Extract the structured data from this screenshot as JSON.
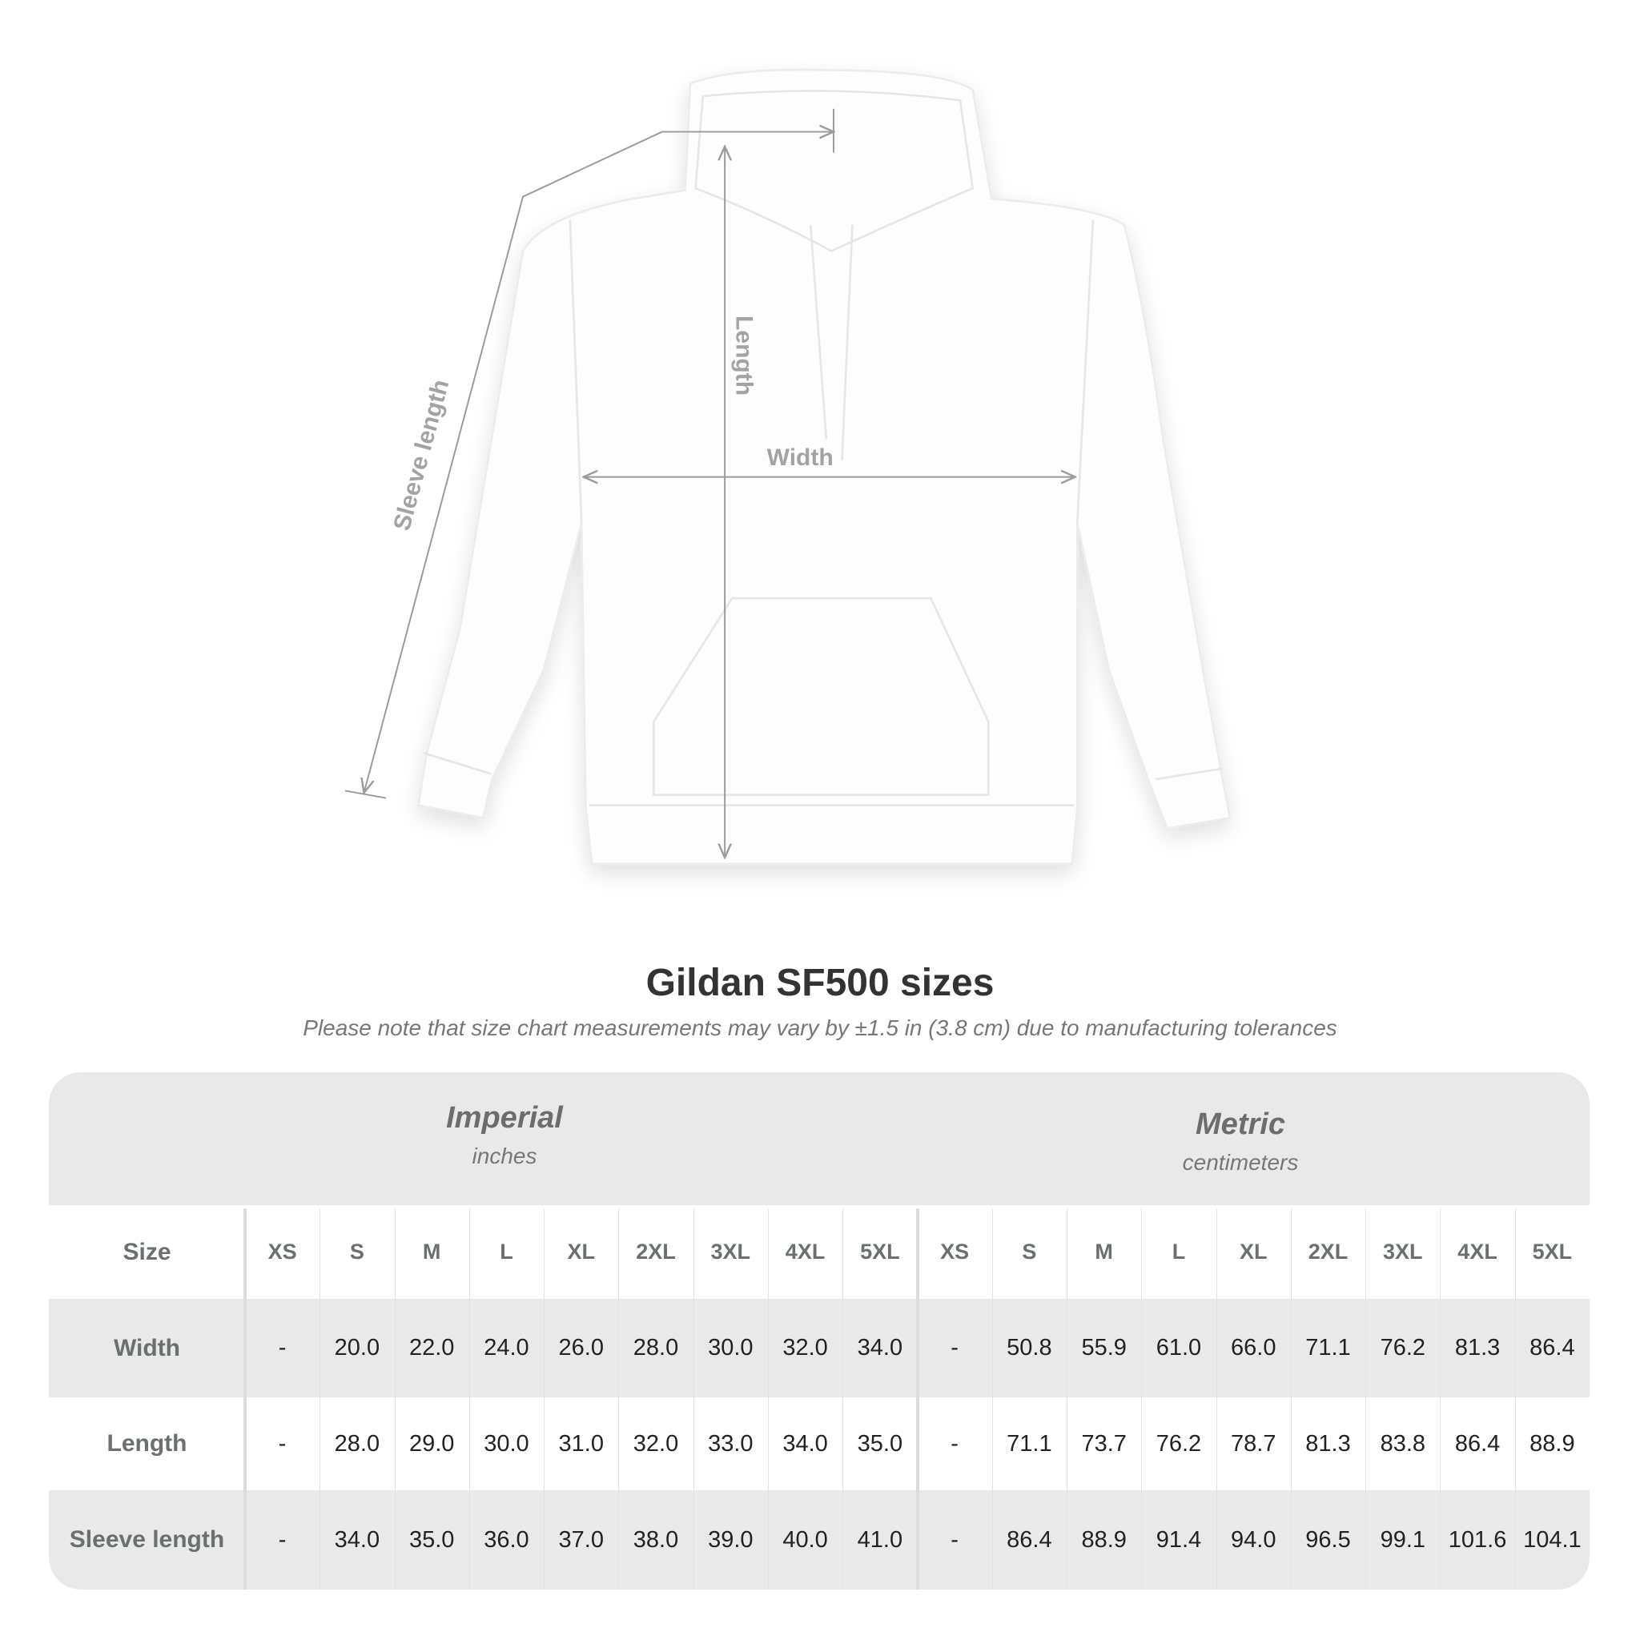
{
  "diagram": {
    "labels": {
      "sleeve": "Sleeve length",
      "length": "Length",
      "width": "Width"
    }
  },
  "title": "Gildan SF500 sizes",
  "subtitle": "Please note that size chart measurements may vary by ±1.5 in (3.8 cm) due to manufacturing tolerances",
  "table": {
    "imperial": {
      "name": "Imperial",
      "unit": "inches"
    },
    "metric": {
      "name": "Metric",
      "unit": "centimeters"
    },
    "size_label": "Size",
    "sizes": [
      "XS",
      "S",
      "M",
      "L",
      "XL",
      "2XL",
      "3XL",
      "4XL",
      "5XL"
    ],
    "rows": [
      {
        "label": "Width",
        "imperial": [
          "-",
          "20.0",
          "22.0",
          "24.0",
          "26.0",
          "28.0",
          "30.0",
          "32.0",
          "34.0"
        ],
        "metric": [
          "-",
          "50.8",
          "55.9",
          "61.0",
          "66.0",
          "71.1",
          "76.2",
          "81.3",
          "86.4"
        ]
      },
      {
        "label": "Length",
        "imperial": [
          "-",
          "28.0",
          "29.0",
          "30.0",
          "31.0",
          "32.0",
          "33.0",
          "34.0",
          "35.0"
        ],
        "metric": [
          "-",
          "71.1",
          "73.7",
          "76.2",
          "78.7",
          "81.3",
          "83.8",
          "86.4",
          "88.9"
        ]
      },
      {
        "label": "Sleeve length",
        "imperial": [
          "-",
          "34.0",
          "35.0",
          "36.0",
          "37.0",
          "38.0",
          "39.0",
          "40.0",
          "41.0"
        ],
        "metric": [
          "-",
          "86.4",
          "88.9",
          "91.4",
          "94.0",
          "96.5",
          "99.1",
          "101.6",
          "104.1"
        ]
      }
    ]
  },
  "colors": {
    "band": "#e9e9e9",
    "header_text": "#6a6f70",
    "dimension_line": "#a3a3a3"
  }
}
